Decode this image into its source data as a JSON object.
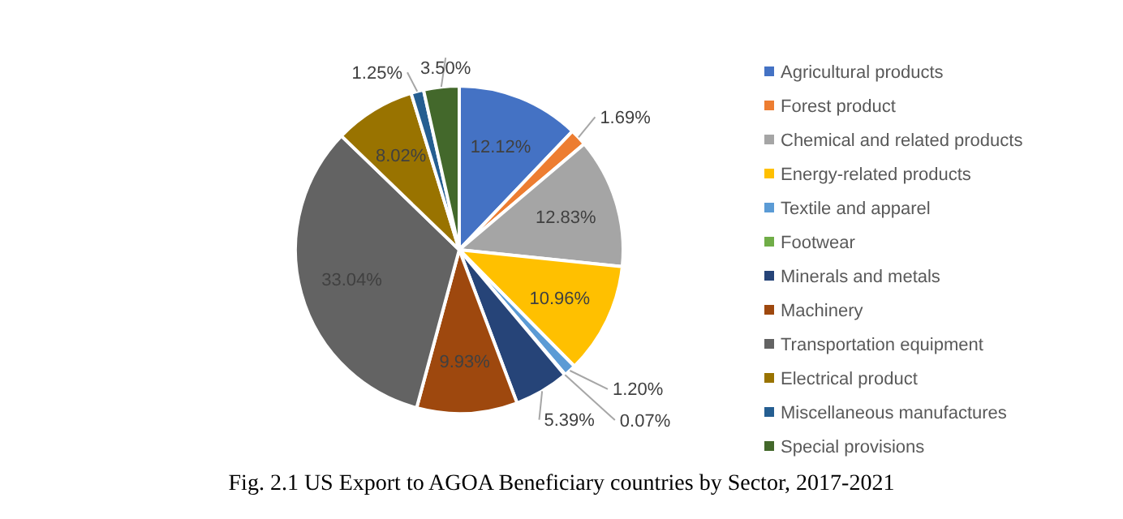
{
  "chart_data": {
    "type": "pie",
    "categories": [
      "Agricultural products",
      "Forest product",
      "Chemical and related products",
      "Energy-related products",
      "Textile and apparel",
      "Footwear",
      "Minerals and metals",
      "Machinery",
      "Transportation equipment",
      "Electrical product",
      "Miscellaneous manufactures",
      "Special provisions"
    ],
    "values": [
      12.12,
      1.69,
      12.83,
      10.96,
      1.2,
      0.07,
      5.39,
      9.93,
      33.04,
      8.02,
      1.25,
      3.5
    ],
    "value_labels": [
      "12.12%",
      "1.69%",
      "12.83%",
      "10.96%",
      "1.20%",
      "0.07%",
      "5.39%",
      "9.93%",
      "33.04%",
      "8.02%",
      "1.25%",
      "3.50%"
    ],
    "colors": [
      "#4472c4",
      "#ed7d31",
      "#a5a5a5",
      "#ffc000",
      "#5b9bd5",
      "#70ad47",
      "#264478",
      "#9e480e",
      "#636363",
      "#997300",
      "#255e91",
      "#43682b"
    ],
    "legend": "right",
    "annotations": [
      "Fig. 2.1 US Export to AGOA Beneficiary countries by Sector, 2017-2021"
    ]
  }
}
